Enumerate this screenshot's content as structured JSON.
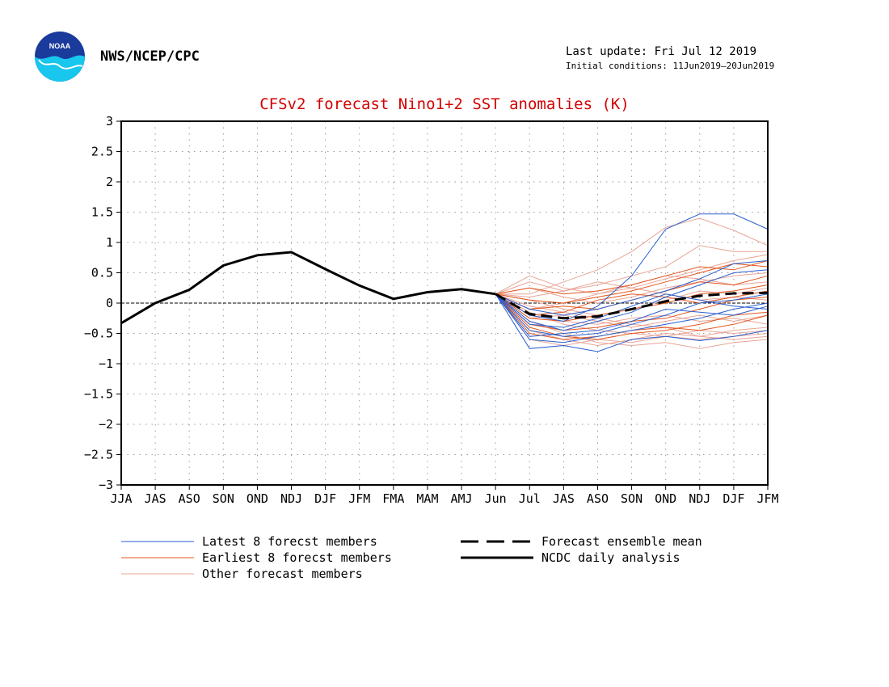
{
  "header": {
    "agency": "NWS/NCEP/CPC",
    "last_update": "Last update: Fri Jul 12 2019",
    "initial_conditions": "Initial conditions: 11Jun2019–20Jun2019",
    "logo_text": "NOAA"
  },
  "colors": {
    "title": "#d40000",
    "latest": "#2a5fd0",
    "earliest": "#e2561f",
    "other": "#e8a597",
    "analysis": "#000000",
    "mean": "#000000"
  },
  "chart_data": {
    "type": "line",
    "title": "CFSv2 forecast Nino1+2 SST anomalies (K)",
    "categories": [
      "JJA",
      "JAS",
      "ASO",
      "SON",
      "OND",
      "NDJ",
      "DJF",
      "JFM",
      "FMA",
      "MAM",
      "AMJ",
      "Jun",
      "Jul",
      "JAS",
      "ASO",
      "SON",
      "OND",
      "NDJ",
      "DJF",
      "JFM"
    ],
    "ylim": [
      -3,
      3
    ],
    "yticks": [
      "3",
      "2.5",
      "2",
      "1.5",
      "1",
      "0.5",
      "0",
      "−0.5",
      "−1",
      "−1.5",
      "−2",
      "−2.5",
      "−3"
    ],
    "grid": true,
    "zero_line": true,
    "legend": {
      "latest": "Latest 8 forecst members",
      "earliest": "Earliest 8 forecst members",
      "other": "Other forecast members",
      "mean": "Forecast ensemble mean",
      "analysis": "NCDC daily analysis"
    },
    "series": {
      "analysis": {
        "x": [
          0,
          1,
          2,
          3,
          4,
          5,
          6,
          7,
          8,
          9,
          10,
          11
        ],
        "values": [
          -0.33,
          0.0,
          0.22,
          0.62,
          0.79,
          0.84,
          0.56,
          0.29,
          0.07,
          0.18,
          0.23,
          0.15
        ]
      },
      "ensemble_mean": {
        "x": [
          11,
          12,
          13,
          14,
          15,
          16,
          17,
          18,
          19
        ],
        "values": [
          0.15,
          -0.18,
          -0.25,
          -0.22,
          -0.1,
          0.03,
          0.12,
          0.16,
          0.17
        ]
      },
      "latest_members": [
        {
          "x": [
            11,
            12,
            13,
            14,
            15,
            16,
            17,
            18,
            19
          ],
          "values": [
            0.15,
            -0.75,
            -0.7,
            -0.8,
            -0.6,
            -0.55,
            -0.62,
            -0.55,
            -0.45
          ]
        },
        {
          "x": [
            11,
            12,
            13,
            14,
            15,
            16,
            17,
            18,
            19
          ],
          "values": [
            0.15,
            -0.2,
            -0.3,
            -0.05,
            0.45,
            1.22,
            1.47,
            1.47,
            1.22
          ]
        },
        {
          "x": [
            11,
            12,
            13,
            14,
            15,
            16,
            17,
            18,
            19
          ],
          "values": [
            0.15,
            -0.55,
            -0.5,
            -0.45,
            -0.3,
            -0.1,
            -0.15,
            -0.2,
            -0.05
          ]
        },
        {
          "x": [
            11,
            12,
            13,
            14,
            15,
            16,
            17,
            18,
            19
          ],
          "values": [
            0.15,
            -0.3,
            -0.45,
            -0.3,
            -0.15,
            0.1,
            0.3,
            0.5,
            0.55
          ]
        },
        {
          "x": [
            11,
            12,
            13,
            14,
            15,
            16,
            17,
            18,
            19
          ],
          "values": [
            0.15,
            -0.1,
            -0.2,
            -0.1,
            0.05,
            0.2,
            0.4,
            0.65,
            0.7
          ]
        },
        {
          "x": [
            11,
            12,
            13,
            14,
            15,
            16,
            17,
            18,
            19
          ],
          "values": [
            0.15,
            -0.45,
            -0.55,
            -0.5,
            -0.35,
            -0.2,
            0.0,
            0.05,
            0.15
          ]
        },
        {
          "x": [
            11,
            12,
            13,
            14,
            15,
            16,
            17,
            18,
            19
          ],
          "values": [
            0.15,
            -0.35,
            -0.4,
            -0.25,
            -0.05,
            0.15,
            0.05,
            -0.05,
            -0.1
          ]
        },
        {
          "x": [
            11,
            12,
            13,
            14,
            15,
            16,
            17,
            18,
            19
          ],
          "values": [
            0.15,
            -0.6,
            -0.65,
            -0.55,
            -0.45,
            -0.35,
            -0.25,
            -0.1,
            0.0
          ]
        }
      ],
      "earliest_members": [
        {
          "x": [
            11,
            12,
            13,
            14,
            15,
            16,
            17,
            18,
            19
          ],
          "values": [
            0.15,
            0.25,
            0.15,
            0.2,
            0.3,
            0.45,
            0.6,
            0.55,
            0.7
          ]
        },
        {
          "x": [
            11,
            12,
            13,
            14,
            15,
            16,
            17,
            18,
            19
          ],
          "values": [
            0.15,
            0.05,
            0.0,
            0.1,
            0.2,
            0.35,
            0.5,
            0.65,
            0.6
          ]
        },
        {
          "x": [
            11,
            12,
            13,
            14,
            15,
            16,
            17,
            18,
            19
          ],
          "values": [
            0.15,
            -0.1,
            -0.05,
            -0.1,
            0.05,
            0.2,
            0.35,
            0.3,
            0.45
          ]
        },
        {
          "x": [
            11,
            12,
            13,
            14,
            15,
            16,
            17,
            18,
            19
          ],
          "values": [
            0.15,
            -0.25,
            -0.3,
            -0.2,
            -0.1,
            0.0,
            0.15,
            0.2,
            0.3
          ]
        },
        {
          "x": [
            11,
            12,
            13,
            14,
            15,
            16,
            17,
            18,
            19
          ],
          "values": [
            0.15,
            -0.35,
            -0.45,
            -0.4,
            -0.3,
            -0.25,
            -0.1,
            0.05,
            0.1
          ]
        },
        {
          "x": [
            11,
            12,
            13,
            14,
            15,
            16,
            17,
            18,
            19
          ],
          "values": [
            0.15,
            -0.4,
            -0.55,
            -0.6,
            -0.5,
            -0.45,
            -0.35,
            -0.2,
            -0.15
          ]
        },
        {
          "x": [
            11,
            12,
            13,
            14,
            15,
            16,
            17,
            18,
            19
          ],
          "values": [
            0.15,
            -0.5,
            -0.6,
            -0.55,
            -0.45,
            -0.4,
            -0.45,
            -0.35,
            -0.2
          ]
        },
        {
          "x": [
            11,
            12,
            13,
            14,
            15,
            16,
            17,
            18,
            19
          ],
          "values": [
            0.15,
            -0.2,
            -0.15,
            0.05,
            0.15,
            0.1,
            0.0,
            0.1,
            0.2
          ]
        }
      ],
      "other_members": [
        {
          "x": [
            11,
            12,
            13,
            14,
            15,
            16,
            17,
            18,
            19
          ],
          "values": [
            0.15,
            0.15,
            0.35,
            0.55,
            0.85,
            1.25,
            1.4,
            1.2,
            0.95
          ]
        },
        {
          "x": [
            11,
            12,
            13,
            14,
            15,
            16,
            17,
            18,
            19
          ],
          "values": [
            0.15,
            0.35,
            0.2,
            0.3,
            0.45,
            0.6,
            0.95,
            0.85,
            0.85
          ]
        },
        {
          "x": [
            11,
            12,
            13,
            14,
            15,
            16,
            17,
            18,
            19
          ],
          "values": [
            0.15,
            0.45,
            0.25,
            0.15,
            0.25,
            0.4,
            0.55,
            0.7,
            0.8
          ]
        },
        {
          "x": [
            11,
            12,
            13,
            14,
            15,
            16,
            17,
            18,
            19
          ],
          "values": [
            0.15,
            -0.05,
            -0.15,
            -0.25,
            -0.35,
            -0.4,
            -0.55,
            -0.6,
            -0.55
          ]
        },
        {
          "x": [
            11,
            12,
            13,
            14,
            15,
            16,
            17,
            18,
            19
          ],
          "values": [
            0.15,
            -0.3,
            -0.5,
            -0.65,
            -0.7,
            -0.65,
            -0.75,
            -0.65,
            -0.6
          ]
        },
        {
          "x": [
            11,
            12,
            13,
            14,
            15,
            16,
            17,
            18,
            19
          ],
          "values": [
            0.15,
            -0.15,
            -0.35,
            -0.45,
            -0.5,
            -0.55,
            -0.45,
            -0.5,
            -0.45
          ]
        },
        {
          "x": [
            11,
            12,
            13,
            14,
            15,
            16,
            17,
            18,
            19
          ],
          "values": [
            0.15,
            0.05,
            -0.1,
            -0.2,
            -0.1,
            0.05,
            0.2,
            0.15,
            0.25
          ]
        },
        {
          "x": [
            11,
            12,
            13,
            14,
            15,
            16,
            17,
            18,
            19
          ],
          "values": [
            0.15,
            -0.2,
            -0.3,
            -0.35,
            -0.25,
            -0.2,
            -0.3,
            -0.25,
            -0.35
          ]
        },
        {
          "x": [
            11,
            12,
            13,
            14,
            15,
            16,
            17,
            18,
            19
          ],
          "values": [
            0.15,
            0.25,
            0.1,
            0.0,
            0.1,
            0.25,
            0.35,
            0.45,
            0.5
          ]
        },
        {
          "x": [
            11,
            12,
            13,
            14,
            15,
            16,
            17,
            18,
            19
          ],
          "values": [
            0.15,
            -0.45,
            -0.6,
            -0.7,
            -0.6,
            -0.5,
            -0.55,
            -0.45,
            -0.4
          ]
        },
        {
          "x": [
            11,
            12,
            13,
            14,
            15,
            16,
            17,
            18,
            19
          ],
          "values": [
            0.15,
            -0.1,
            0.0,
            0.15,
            0.3,
            0.45,
            0.4,
            0.3,
            0.35
          ]
        },
        {
          "x": [
            11,
            12,
            13,
            14,
            15,
            16,
            17,
            18,
            19
          ],
          "values": [
            0.15,
            -0.25,
            -0.2,
            -0.3,
            -0.4,
            -0.3,
            -0.2,
            -0.3,
            -0.2
          ]
        },
        {
          "x": [
            11,
            12,
            13,
            14,
            15,
            16,
            17,
            18,
            19
          ],
          "values": [
            0.15,
            -0.6,
            -0.7,
            -0.6,
            -0.65,
            -0.55,
            -0.6,
            -0.55,
            -0.5
          ]
        },
        {
          "x": [
            11,
            12,
            13,
            14,
            15,
            16,
            17,
            18,
            19
          ],
          "values": [
            0.15,
            0.1,
            0.2,
            0.35,
            0.25,
            0.15,
            0.05,
            0.1,
            0.05
          ]
        }
      ]
    }
  }
}
